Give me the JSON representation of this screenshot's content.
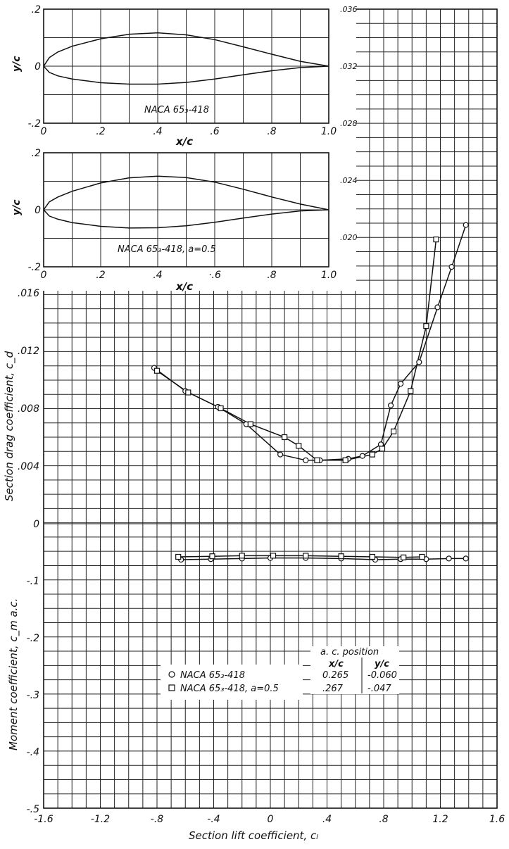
{
  "chart_data": [
    {
      "id": "profile_1",
      "type": "line",
      "title": "NACA 65₃-418",
      "xlabel": "x/c",
      "ylabel": "y/c",
      "xlim": [
        0,
        1.0
      ],
      "ylim": [
        -0.2,
        0.2
      ],
      "xticks": [
        "0",
        ".2",
        ".4",
        ".6",
        ".8",
        "1.0"
      ],
      "yticks": [
        ".2",
        "0",
        "-.2"
      ],
      "series": [
        {
          "x": [
            0,
            0.02,
            0.05,
            0.1,
            0.2,
            0.3,
            0.4,
            0.5,
            0.6,
            0.7,
            0.8,
            0.9,
            1.0
          ],
          "y": [
            0,
            0.03,
            0.05,
            0.07,
            0.096,
            0.112,
            0.117,
            0.11,
            0.093,
            0.068,
            0.042,
            0.017,
            0
          ]
        },
        {
          "x": [
            0,
            0.02,
            0.05,
            0.1,
            0.2,
            0.3,
            0.4,
            0.5,
            0.6,
            0.7,
            0.8,
            0.9,
            1.0
          ],
          "y": [
            0,
            -0.022,
            -0.034,
            -0.045,
            -0.058,
            -0.063,
            -0.063,
            -0.057,
            -0.045,
            -0.03,
            -0.016,
            -0.005,
            0
          ]
        }
      ]
    },
    {
      "id": "profile_2",
      "type": "line",
      "title": "NACA 65₃-418, a=0.5",
      "xlabel": "x/c",
      "ylabel": "y/c",
      "xlim": [
        0,
        1.0
      ],
      "ylim": [
        -0.2,
        0.2
      ],
      "xticks": [
        "0",
        ".2",
        ".4",
        "·.6",
        ".8",
        "1.0"
      ],
      "yticks": [
        ".2",
        "0",
        "-.2"
      ],
      "series": [
        {
          "x": [
            0,
            0.02,
            0.05,
            0.1,
            0.2,
            0.3,
            0.4,
            0.5,
            0.6,
            0.7,
            0.8,
            0.9,
            1.0
          ],
          "y": [
            0,
            0.028,
            0.045,
            0.065,
            0.094,
            0.112,
            0.118,
            0.113,
            0.097,
            0.072,
            0.045,
            0.02,
            0
          ]
        },
        {
          "x": [
            0,
            0.02,
            0.05,
            0.1,
            0.2,
            0.3,
            0.4,
            0.5,
            0.6,
            0.7,
            0.8,
            0.9,
            1.0
          ],
          "y": [
            0,
            -0.022,
            -0.033,
            -0.045,
            -0.058,
            -0.064,
            -0.063,
            -0.056,
            -0.044,
            -0.029,
            -0.015,
            -0.004,
            0
          ]
        }
      ]
    },
    {
      "id": "drag",
      "type": "scatter",
      "xlabel": "Section lift coefficient, cₗ",
      "ylabel": "Section drag coefficient, c_d",
      "xlim": [
        -1.6,
        1.6
      ],
      "ylim": [
        0,
        0.016
      ],
      "xticks": [
        "-1.6",
        "-1.2",
        "-.8",
        "-.4",
        "0",
        ".4",
        ".8",
        "1.2",
        "1.6"
      ],
      "yticks": [
        ".016",
        ".012",
        ".008",
        ".004",
        "0"
      ],
      "right_axis_ticks": [
        ".036",
        ".032",
        ".028",
        ".024",
        ".020"
      ],
      "series": [
        {
          "name": "NACA 65₃-418",
          "marker": "circle",
          "x": [
            -0.82,
            -0.6,
            -0.37,
            -0.17,
            0.07,
            0.25,
            0.35,
            0.55,
            0.65,
            0.78,
            0.85,
            0.92,
            1.05,
            1.18,
            1.28,
            1.38
          ],
          "y": [
            0.0108,
            0.0092,
            0.0081,
            0.0069,
            0.0048,
            0.0044,
            0.0044,
            0.0045,
            0.0047,
            0.0055,
            0.0082,
            0.0097,
            0.0112,
            0.015,
            0.0178,
            0.0207
          ]
        },
        {
          "name": "NACA 65₃-418, a=0.5",
          "marker": "square",
          "x": [
            -0.8,
            -0.58,
            -0.35,
            -0.14,
            0.1,
            0.2,
            0.33,
            0.53,
            0.72,
            0.79,
            0.87,
            0.99,
            1.1,
            1.17
          ],
          "y": [
            0.0106,
            0.0091,
            0.008,
            0.0069,
            0.006,
            0.0054,
            0.0044,
            0.0044,
            0.0048,
            0.0052,
            0.0064,
            0.0092,
            0.0137,
            0.0197
          ]
        }
      ]
    },
    {
      "id": "moment",
      "type": "scatter",
      "xlabel": "Section lift coefficient, cₗ",
      "ylabel": "Moment coefficient, c_m a.c.",
      "xlim": [
        -1.6,
        1.6
      ],
      "ylim": [
        -0.5,
        0
      ],
      "yticks": [
        "0",
        "-.1",
        "-.2",
        "-.3",
        "-.4",
        "-.5"
      ],
      "series": [
        {
          "name": "NACA 65₃-418",
          "marker": "circle",
          "x": [
            -0.63,
            -0.42,
            -0.2,
            0.0,
            0.25,
            0.5,
            0.74,
            0.92,
            1.1,
            1.26,
            1.38
          ],
          "y": [
            -0.063,
            -0.062,
            -0.061,
            -0.06,
            -0.06,
            -0.061,
            -0.063,
            -0.062,
            -0.062,
            -0.061,
            -0.061
          ]
        },
        {
          "name": "NACA 65₃-418, a=0.5",
          "marker": "square",
          "x": [
            -0.65,
            -0.41,
            -0.2,
            0.02,
            0.25,
            0.5,
            0.72,
            0.94,
            1.07
          ],
          "y": [
            -0.058,
            -0.057,
            -0.056,
            -0.056,
            -0.056,
            -0.057,
            -0.058,
            -0.059,
            -0.058
          ]
        }
      ]
    }
  ],
  "legend": {
    "header": "a. c. position",
    "col_x": "x/c",
    "col_y": "y/c",
    "rows": [
      {
        "marker": "circle",
        "label": "NACA 65₃-418",
        "xc": "0.265",
        "yc": "-0.060"
      },
      {
        "marker": "square",
        "label": "NACA 65₃-418, a=0.5",
        "xc": ".267",
        "yc": "-.047"
      }
    ]
  }
}
